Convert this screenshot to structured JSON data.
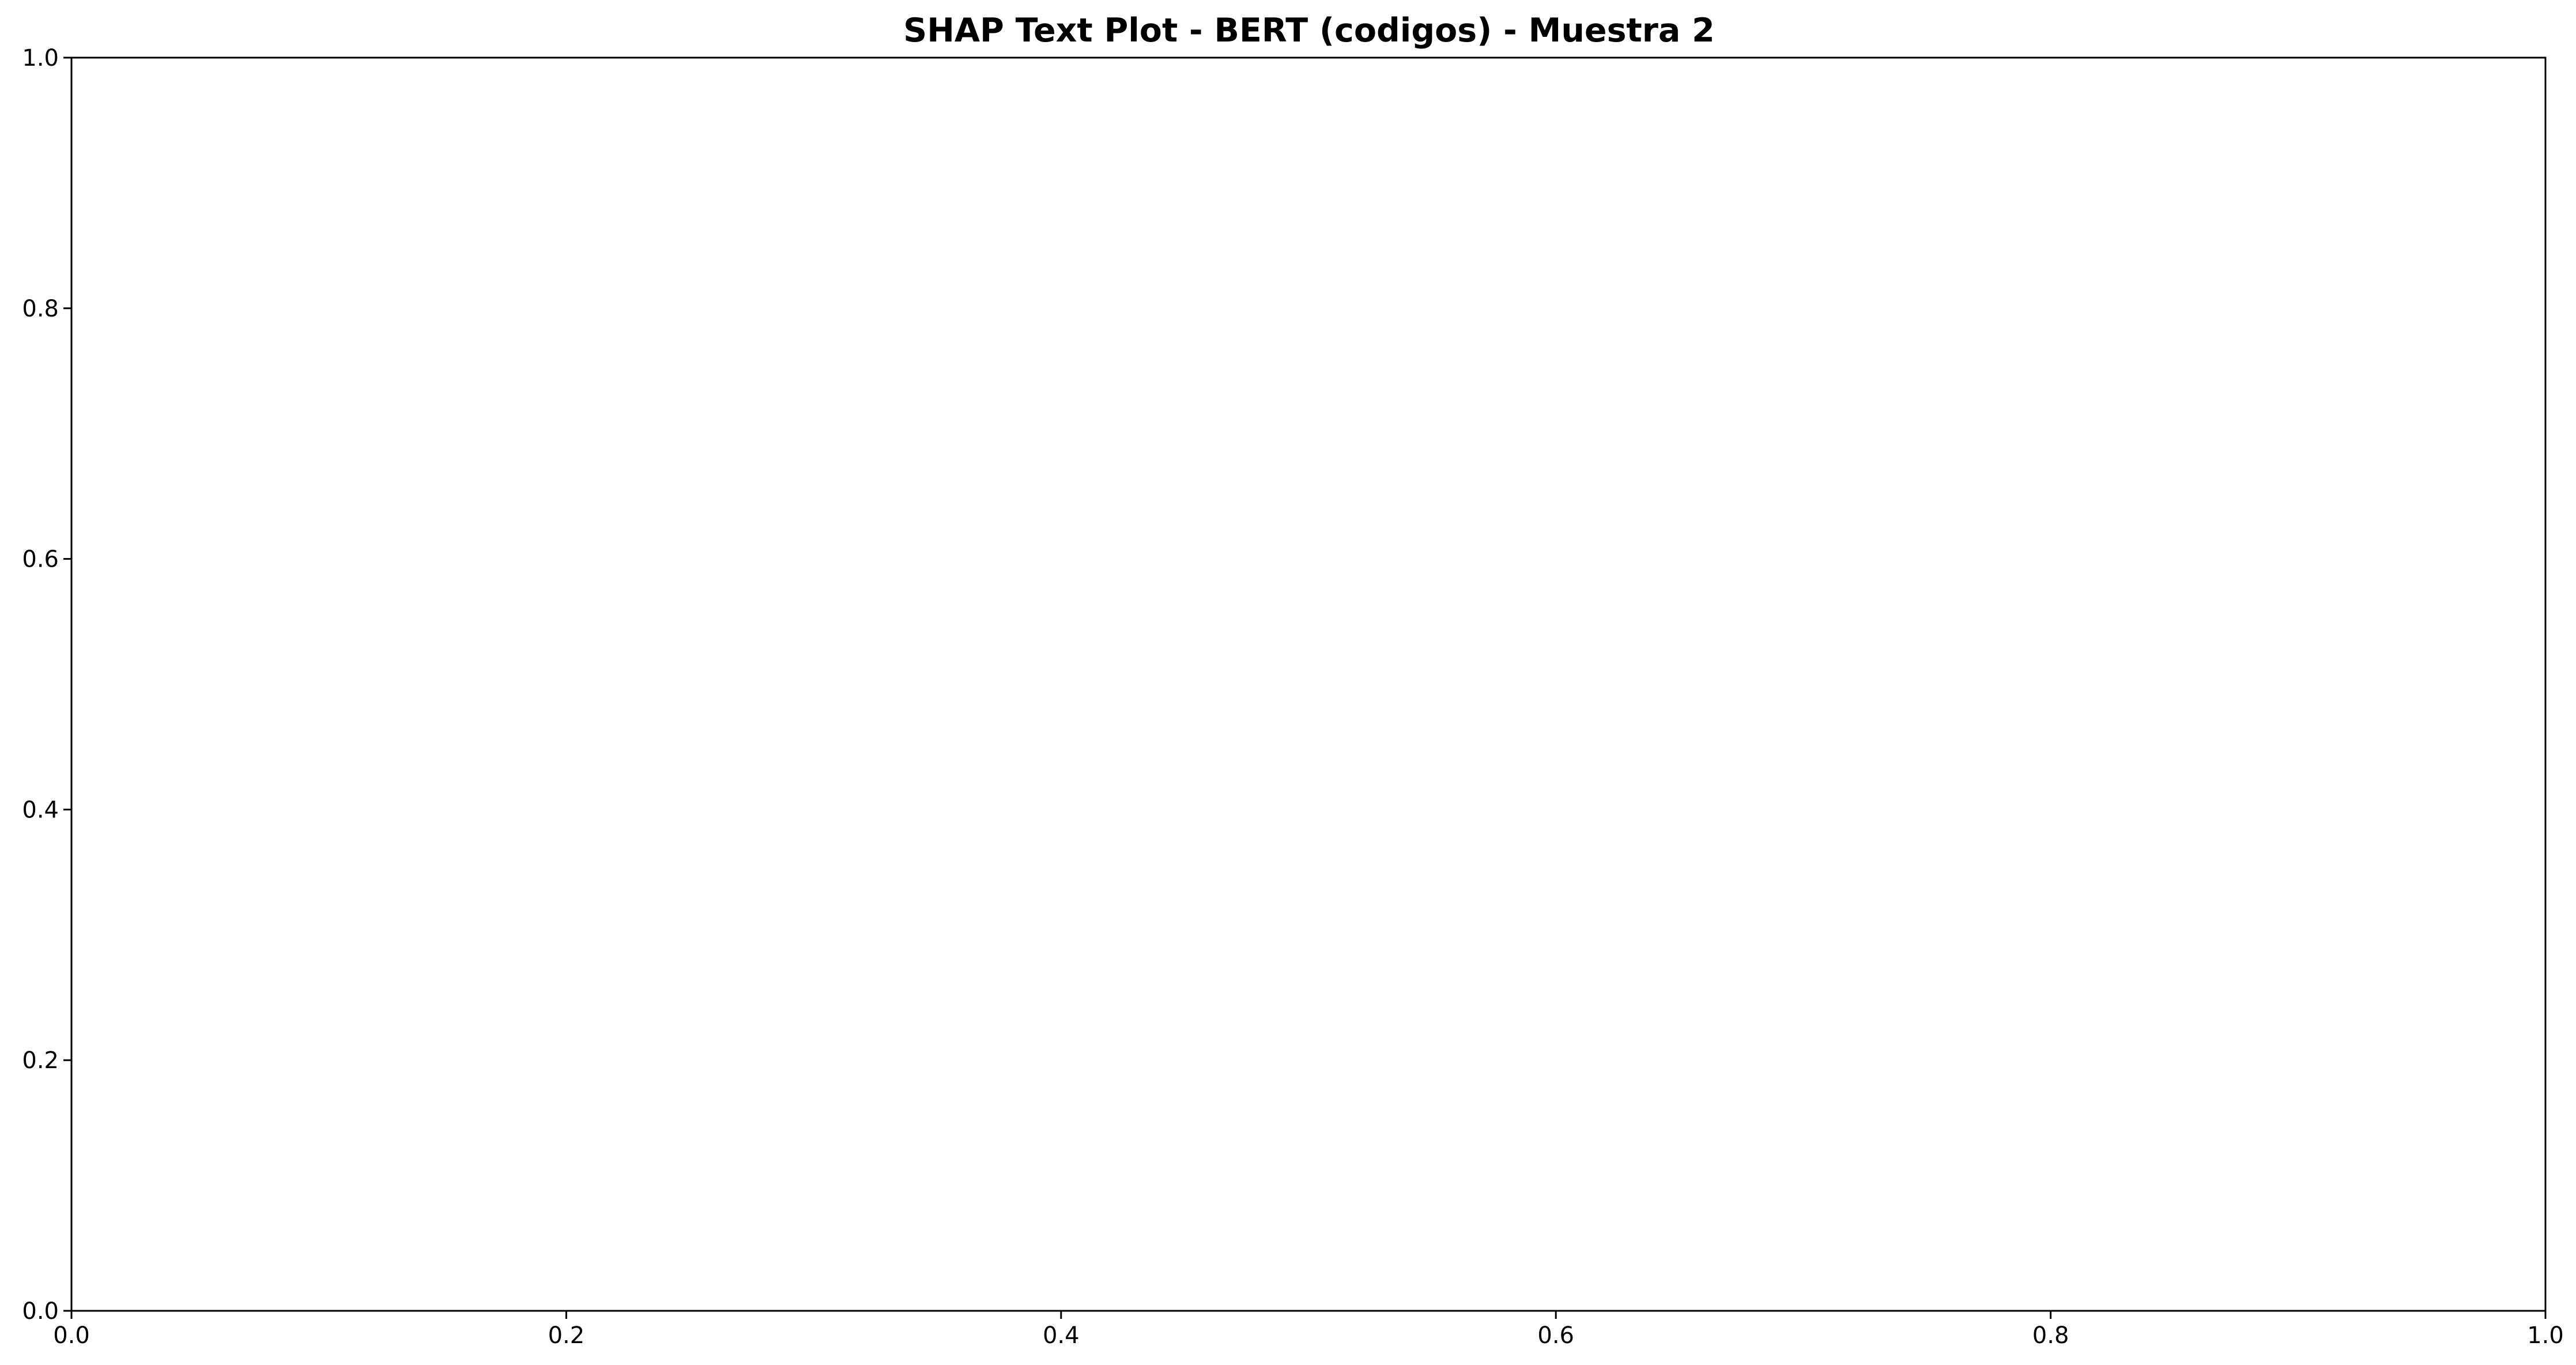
{
  "chart_data": {
    "type": "scatter",
    "title": "SHAP Text Plot - BERT (codigos) - Muestra 2",
    "xlabel": "",
    "ylabel": "",
    "xlim": [
      0.0,
      1.0
    ],
    "ylim": [
      0.0,
      1.0
    ],
    "x_ticks": [
      "0.0",
      "0.2",
      "0.4",
      "0.6",
      "0.8",
      "1.0"
    ],
    "y_ticks": [
      "0.0",
      "0.2",
      "0.4",
      "0.6",
      "0.8",
      "1.0"
    ],
    "series": [],
    "grid": false,
    "legend": "none"
  }
}
